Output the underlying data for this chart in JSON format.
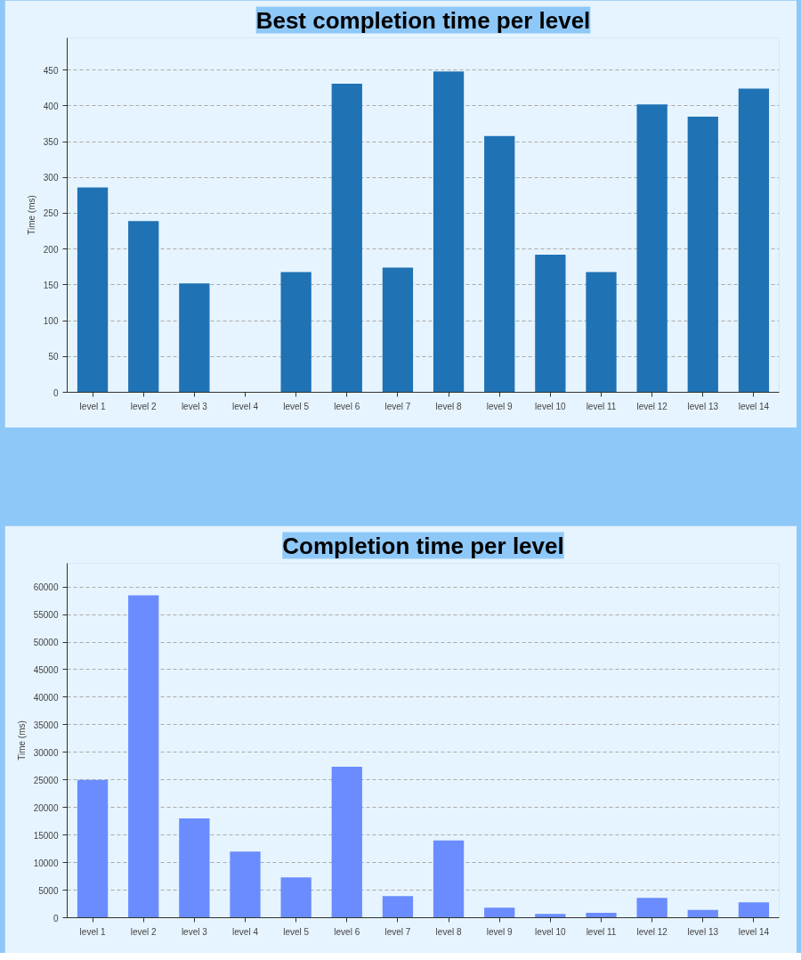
{
  "chart_data": [
    {
      "type": "bar",
      "title": "Best completion time per level",
      "ylabel": "Time (ms)",
      "categories": [
        "level 1",
        "level 2",
        "level 3",
        "level 4",
        "level 5",
        "level 6",
        "level 7",
        "level 8",
        "level 9",
        "level 10",
        "level 11",
        "level 12",
        "level 13",
        "level 14"
      ],
      "values": [
        286,
        239,
        152,
        null,
        168,
        431,
        174,
        448,
        358,
        192,
        168,
        402,
        385,
        424
      ],
      "color": "#1f72b4",
      "ylim": [
        0,
        495
      ],
      "yticks": [
        0,
        50,
        100,
        150,
        200,
        250,
        300,
        350,
        400,
        450
      ],
      "grid": "y"
    },
    {
      "type": "bar",
      "title": "Completion time per level",
      "ylabel": "Time (ms)",
      "categories": [
        "level 1",
        "level 2",
        "level 3",
        "level 4",
        "level 5",
        "level 6",
        "level 7",
        "level 8",
        "level 9",
        "level 10",
        "level 11",
        "level 12",
        "level 13",
        "level 14"
      ],
      "values": [
        25000,
        58500,
        18000,
        12000,
        7300,
        27400,
        3900,
        14000,
        1800,
        700,
        900,
        3600,
        1400,
        2800
      ],
      "color": "#6a8cff",
      "ylim": [
        0,
        64300
      ],
      "yticks": [
        0,
        5000,
        10000,
        15000,
        20000,
        25000,
        30000,
        35000,
        40000,
        45000,
        50000,
        55000,
        60000
      ],
      "grid": "y"
    }
  ]
}
